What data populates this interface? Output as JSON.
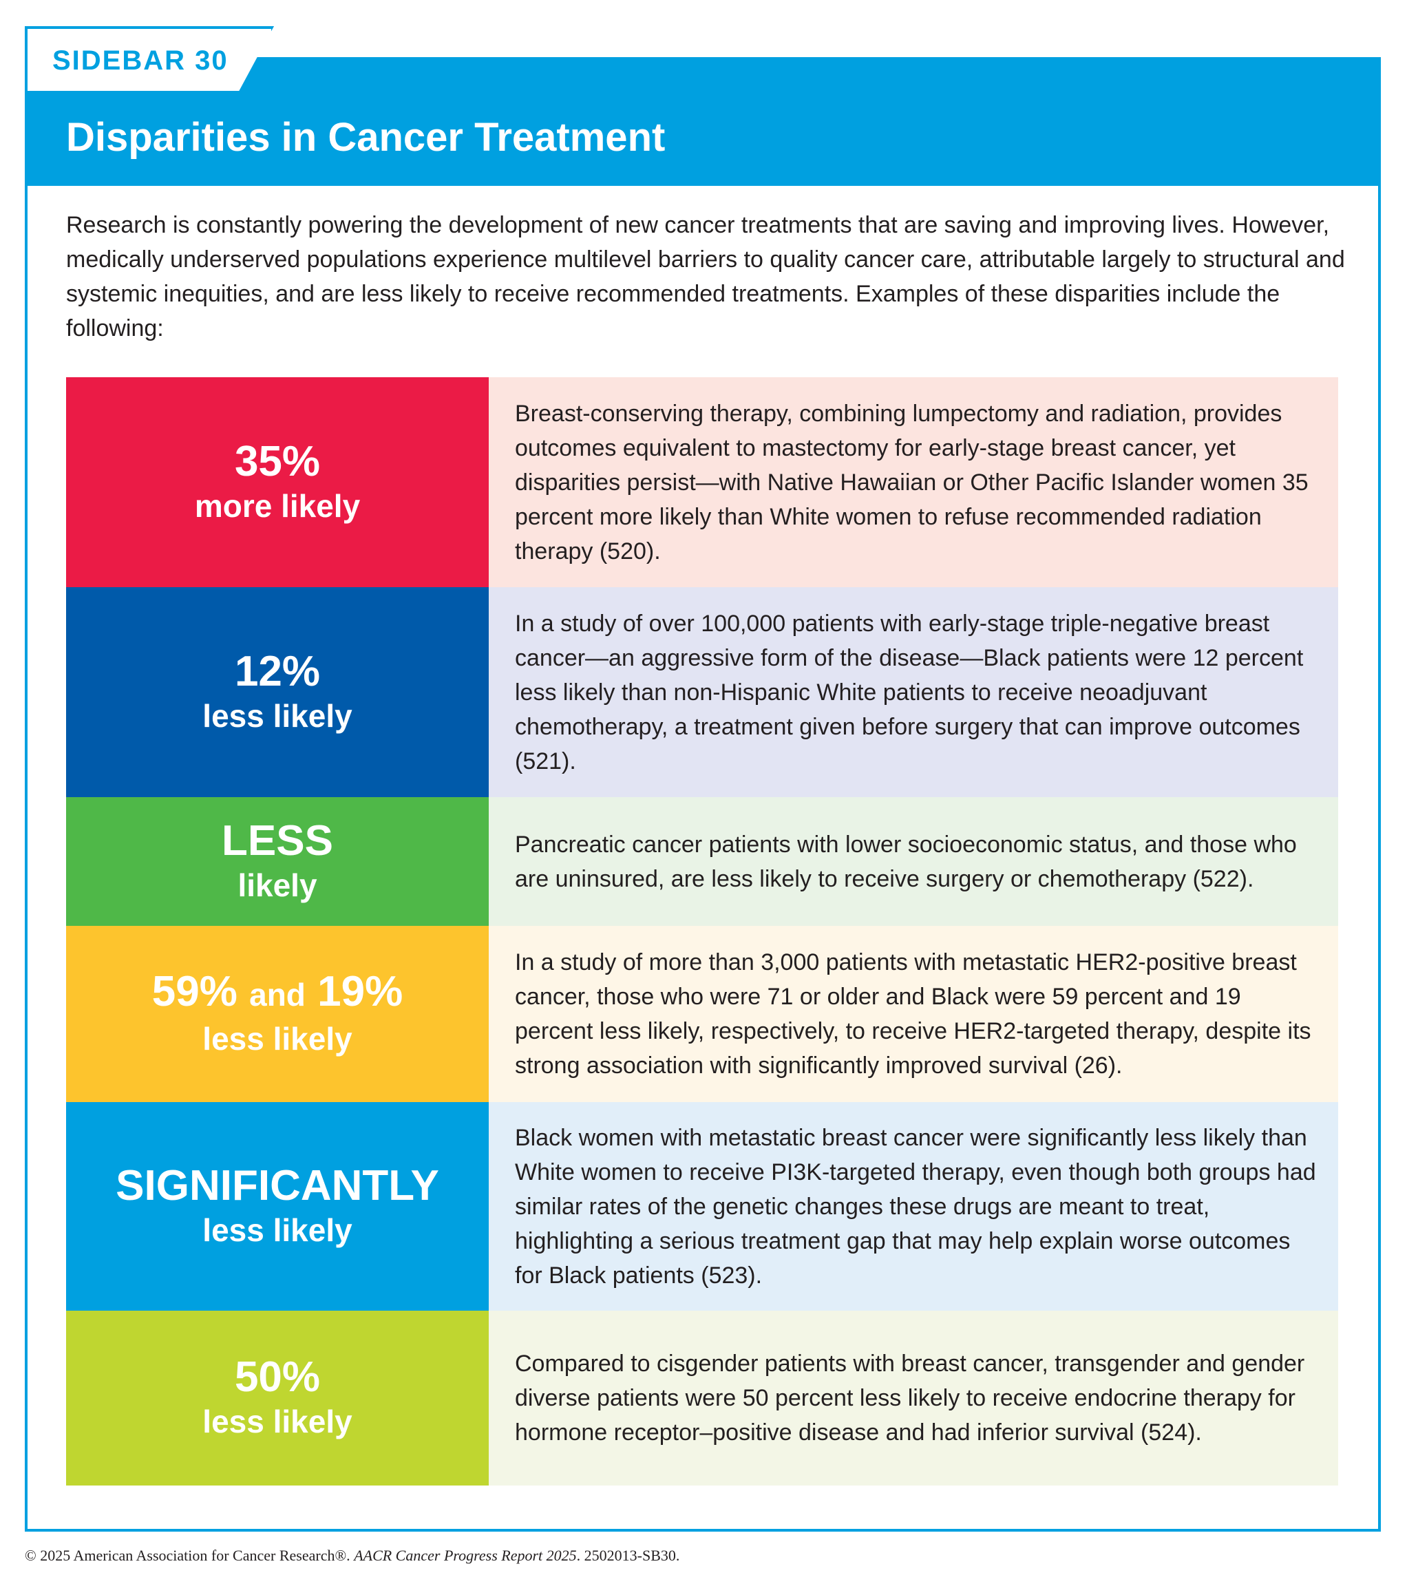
{
  "sidebar_label": "SIDEBAR 30",
  "title": "Disparities in Cancer Treatment",
  "intro": "Research is constantly powering the development of new cancer treatments that are saving and improving lives. However, medically underserved populations experience multilevel barriers to quality cancer care, attributable largely to structural and systemic inequities, and are less likely to receive recommended treatments. Examples of these disparities include the following:",
  "colors": {
    "accent": "#00A0E0",
    "row1_stat": "#EB1B46",
    "row1_desc": "#FCE4DF",
    "row2_stat": "#005AAA",
    "row2_desc": "#E2E4F3",
    "row3_stat": "#4FB848",
    "row3_desc": "#E9F3E6",
    "row4_stat": "#FDC42D",
    "row4_desc": "#FEF6E7",
    "row5_stat": "#00A0E0",
    "row5_desc": "#E1EEF9",
    "row6_stat": "#BFD630",
    "row6_desc": "#F3F6E6"
  },
  "rows": [
    {
      "stat": "35%",
      "label": "more likely",
      "text": "Breast-conserving therapy, combining lumpectomy and radiation, provides outcomes equivalent to mastectomy for early-stage breast cancer, yet disparities persist—with Native Hawaiian or Other Pacific Islander women 35 percent more likely than White women to refuse recommended radiation therapy (520)."
    },
    {
      "stat": "12%",
      "label": "less likely",
      "text": "In a study of over 100,000 patients with early-stage triple-negative breast cancer—an aggressive form of the disease—Black patients were 12 percent less likely than non-Hispanic White patients to receive neoadjuvant chemotherapy, a treatment given before surgery that can improve outcomes (521)."
    },
    {
      "stat": "LESS",
      "label": "likely",
      "text": "Pancreatic cancer patients with lower socioeconomic status, and those who are uninsured, are less likely to receive surgery or chemotherapy (522)."
    },
    {
      "stat_a": "59%",
      "stat_and": "and",
      "stat_b": "19%",
      "label": "less likely",
      "text": "In a study of more than 3,000 patients with metastatic HER2-positive breast cancer, those who were 71 or older and Black were 59 percent and 19 percent less likely, respectively, to receive HER2-targeted therapy, despite its strong association with significantly improved survival (26)."
    },
    {
      "stat": "SIGNIFICANTLY",
      "label": "less likely",
      "text": "Black women with metastatic breast cancer were significantly less likely than White women to receive PI3K-targeted therapy, even though both groups had similar rates of the genetic changes these drugs are meant to treat, highlighting a serious treatment gap that may help explain worse outcomes for Black patients (523)."
    },
    {
      "stat": "50%",
      "label": "less likely",
      "text": "Compared to cisgender patients with breast cancer, transgender and gender diverse patients were 50 percent less likely to receive endocrine therapy for hormone receptor–positive disease and had inferior survival (524)."
    }
  ],
  "copyright": {
    "prefix": "© 2025 American Association for Cancer Research®. ",
    "report": "AACR Cancer Progress Report 2025",
    "suffix": ". 2502013-SB30."
  }
}
